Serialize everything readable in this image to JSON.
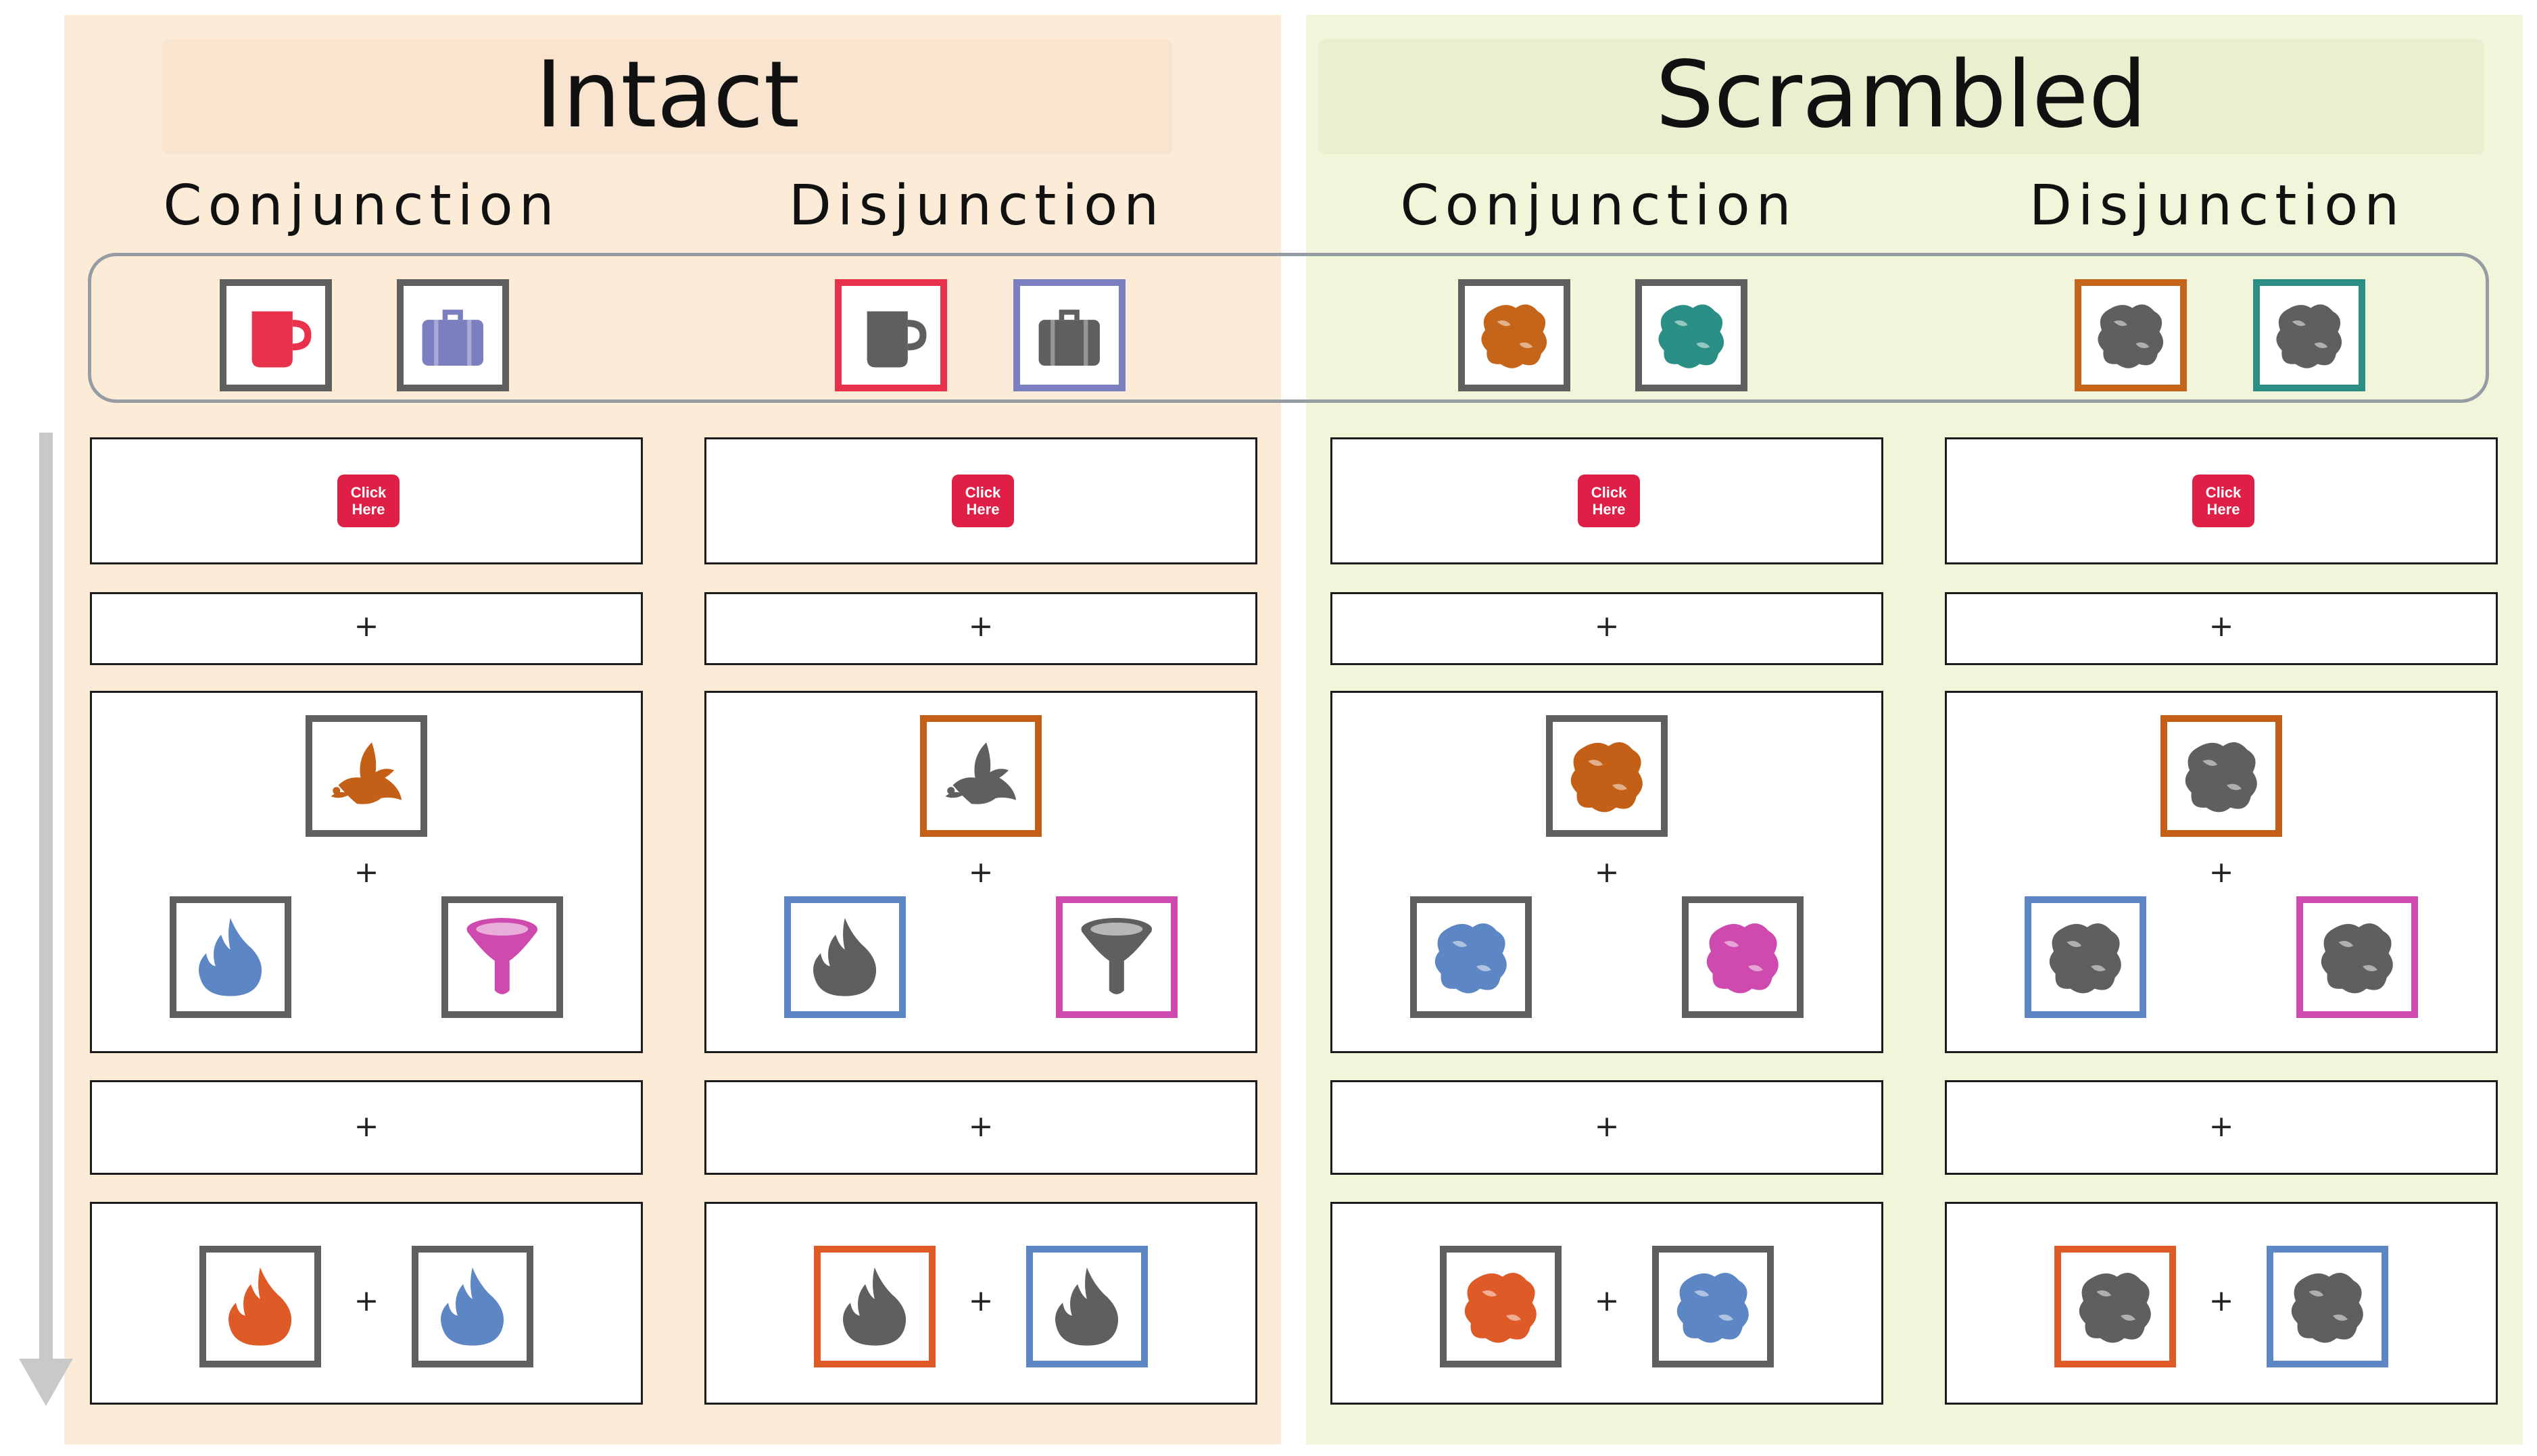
{
  "panels": {
    "intact": {
      "title": "Intact",
      "bg": "#fcebd7"
    },
    "scrambled": {
      "title": "Scrambled",
      "bg": "#f1f6da"
    }
  },
  "columns": [
    {
      "id": "intact-conj",
      "label": "Conjunction",
      "legend": [
        {
          "icon": "mug-icon",
          "fill": "#e8314b",
          "frame": "#5f5f5f"
        },
        {
          "icon": "suitcase-icon",
          "fill": "#7b7fc0",
          "frame": "#5f5f5f"
        }
      ],
      "sample": {
        "icon": "dove-icon",
        "fill": "#c45f17",
        "frame": "#5f5f5f"
      },
      "options": [
        {
          "icon": "flame-icon",
          "fill": "#5c87c4",
          "frame": "#5f5f5f"
        },
        {
          "icon": "funnel-icon",
          "fill": "#cf4aae",
          "frame": "#5f5f5f"
        }
      ],
      "answer": [
        {
          "icon": "flame-icon",
          "fill": "#de5a26",
          "frame": "#5f5f5f"
        },
        {
          "icon": "flame-icon",
          "fill": "#5c87c4",
          "frame": "#5f5f5f"
        }
      ]
    },
    {
      "id": "intact-disj",
      "label": "Disjunction",
      "legend": [
        {
          "icon": "mug-icon",
          "fill": "#5f5f5f",
          "frame": "#e8314b"
        },
        {
          "icon": "suitcase-icon",
          "fill": "#5f5f5f",
          "frame": "#7b7fc0"
        }
      ],
      "sample": {
        "icon": "dove-icon",
        "fill": "#5f5f5f",
        "frame": "#c45f17"
      },
      "options": [
        {
          "icon": "flame-icon",
          "fill": "#5f5f5f",
          "frame": "#5c87c4"
        },
        {
          "icon": "funnel-icon",
          "fill": "#5f5f5f",
          "frame": "#cf4aae"
        }
      ],
      "answer": [
        {
          "icon": "flame-icon",
          "fill": "#5f5f5f",
          "frame": "#de5a26"
        },
        {
          "icon": "flame-icon",
          "fill": "#5f5f5f",
          "frame": "#5c87c4"
        }
      ]
    },
    {
      "id": "scr-conj",
      "label": "Conjunction",
      "legend": [
        {
          "icon": "blob-icon",
          "fill": "#c4651a",
          "frame": "#5f5f5f"
        },
        {
          "icon": "blob-icon",
          "fill": "#2b8f86",
          "frame": "#5f5f5f"
        }
      ],
      "sample": {
        "icon": "blob-icon",
        "fill": "#c45f17",
        "frame": "#5f5f5f"
      },
      "options": [
        {
          "icon": "blob-icon",
          "fill": "#5c87c4",
          "frame": "#5f5f5f"
        },
        {
          "icon": "blob-icon",
          "fill": "#cf4aae",
          "frame": "#5f5f5f"
        }
      ],
      "answer": [
        {
          "icon": "blob-icon",
          "fill": "#de5a26",
          "frame": "#5f5f5f"
        },
        {
          "icon": "blob-icon",
          "fill": "#5c87c4",
          "frame": "#5f5f5f"
        }
      ]
    },
    {
      "id": "scr-disj",
      "label": "Disjunction",
      "legend": [
        {
          "icon": "blob-icon",
          "fill": "#5f5f5f",
          "frame": "#c4651a"
        },
        {
          "icon": "blob-icon",
          "fill": "#5f5f5f",
          "frame": "#2b8f86"
        }
      ],
      "sample": {
        "icon": "blob-icon",
        "fill": "#5f5f5f",
        "frame": "#c45f17"
      },
      "options": [
        {
          "icon": "blob-icon",
          "fill": "#5f5f5f",
          "frame": "#5c87c4"
        },
        {
          "icon": "blob-icon",
          "fill": "#5f5f5f",
          "frame": "#cf4aae"
        }
      ],
      "answer": [
        {
          "icon": "blob-icon",
          "fill": "#5f5f5f",
          "frame": "#de5a26"
        },
        {
          "icon": "blob-icon",
          "fill": "#5f5f5f",
          "frame": "#5c87c4"
        }
      ]
    }
  ],
  "button": {
    "line1": "Click",
    "line2": "Here",
    "color": "#e01f46"
  },
  "fixation": "+",
  "plus": "+"
}
